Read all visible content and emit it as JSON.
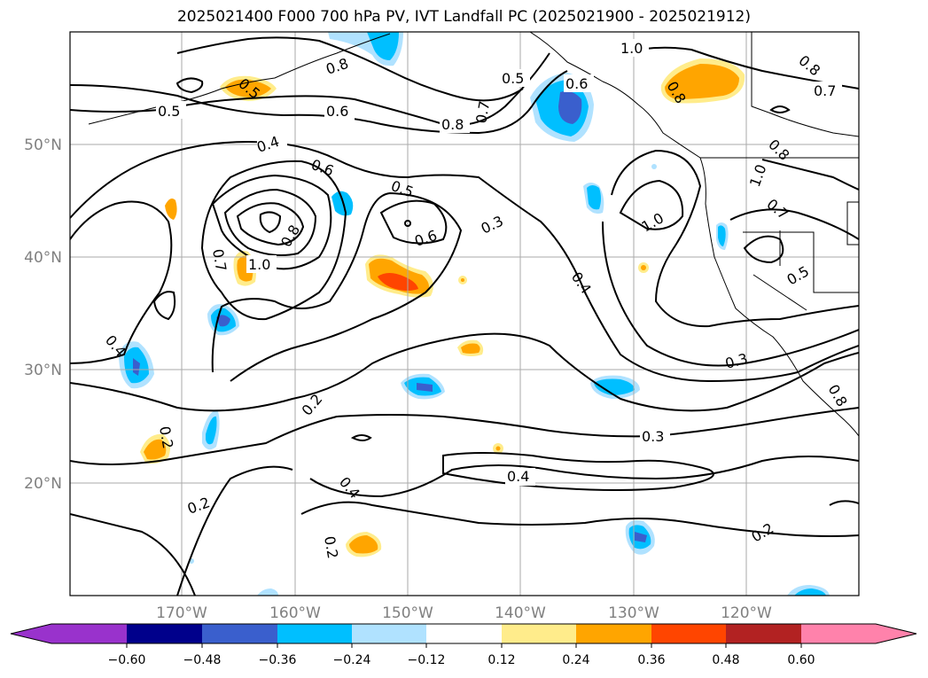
{
  "title": "2025021400 F000 700 hPa PV, IVT Landfall PC (2025021900 - 2025021912)",
  "lat_labels": [
    "50°N",
    "40°N",
    "30°N",
    "20°N"
  ],
  "lon_labels": [
    "170°W",
    "160°W",
    "150°W",
    "140°W",
    "130°W",
    "120°W"
  ],
  "colorbar": {
    "ticks": [
      "−0.60",
      "−0.48",
      "−0.36",
      "−0.24",
      "−0.12",
      "0.12",
      "0.24",
      "0.36",
      "0.48",
      "0.60"
    ],
    "colors": [
      "#9932cc",
      "#00008b",
      "#3a5fcd",
      "#00bfff",
      "#b0e2ff",
      "#ffffff",
      "#ffec8b",
      "#ffa500",
      "#ff4500",
      "#b22222",
      "#ff82ab"
    ]
  },
  "contour_labels": [
    "0.5",
    "0.6",
    "0.8",
    "0.5",
    "0.6",
    "1.0",
    "0.8",
    "0.7",
    "0.8",
    "0.7",
    "0.8",
    "0.5",
    "0.4",
    "0.6",
    "0.5",
    "0.6",
    "0.3",
    "0.8",
    "1.0",
    "1.0",
    "0.7",
    "0.4",
    "0.8",
    "0.7",
    "1.0",
    "0.5",
    "0.3",
    "0.4",
    "0.2",
    "0.3",
    "0.2",
    "0.4",
    "0.2",
    "0.2",
    "0.2",
    "0.8",
    "0.4"
  ]
}
